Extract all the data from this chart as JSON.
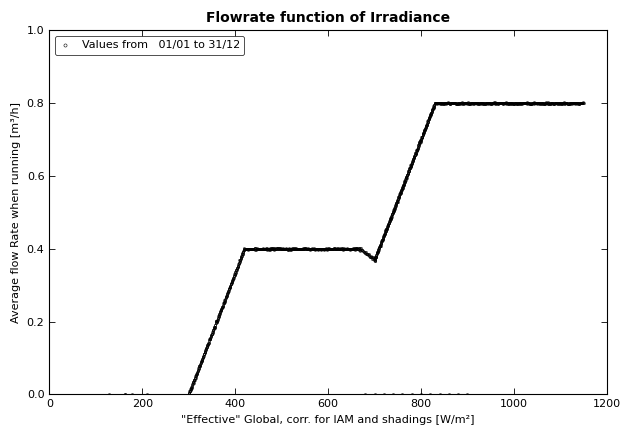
{
  "title": "Flowrate function of Irradiance",
  "xlabel": "\"Effective\" Global, corr. for IAM and shadings [W/m²]",
  "ylabel": "Average flow Rate when running [m³/h]",
  "xlim": [
    0,
    1200
  ],
  "ylim": [
    0,
    1.0
  ],
  "xticks": [
    0,
    200,
    400,
    600,
    800,
    1000,
    1200
  ],
  "yticks": [
    0.0,
    0.2,
    0.4,
    0.6,
    0.8,
    1.0
  ],
  "legend_label": "Values from   01/01 to 31/12",
  "marker": "o",
  "markersize": 1.5,
  "color": "black",
  "background_color": "white",
  "title_fontsize": 10,
  "label_fontsize": 8,
  "tick_fontsize": 8
}
